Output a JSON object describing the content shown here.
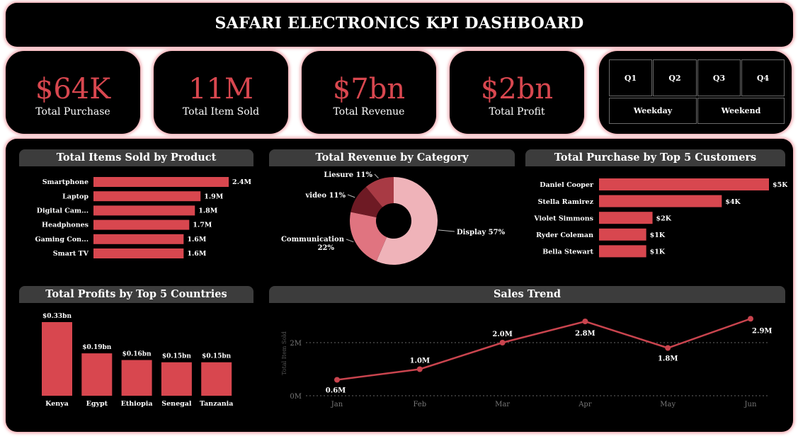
{
  "title": "SAFARI ELECTRONICS KPI DASHBOARD",
  "kpis": [
    {
      "value": "$64K",
      "label": "Total Purchase"
    },
    {
      "value": "11M",
      "label": "Total Item Sold"
    },
    {
      "value": "$7bn",
      "label": "Total Revenue"
    },
    {
      "value": "$2bn",
      "label": "Total Profit"
    }
  ],
  "slicer": {
    "quarters": [
      "Q1",
      "Q2",
      "Q3",
      "Q4"
    ],
    "day_types": [
      "Weekday",
      "Weekend"
    ]
  },
  "colors": {
    "accent": "#d8474f",
    "panel": "#000000",
    "header": "#3c3c3c"
  },
  "chart_data": [
    {
      "type": "bar",
      "orientation": "horizontal",
      "title": "Total Items Sold by Product",
      "categories": [
        "Smartphone",
        "Laptop",
        "Digital Cam...",
        "Headphones",
        "Gaming Con...",
        "Smart TV"
      ],
      "values": [
        2.4,
        1.9,
        1.8,
        1.7,
        1.6,
        1.6
      ],
      "value_labels": [
        "2.4M",
        "1.9M",
        "1.8M",
        "1.7M",
        "1.6M",
        "1.6M"
      ],
      "color": "#d8474f"
    },
    {
      "type": "pie",
      "donut": true,
      "title": "Total Revenue by Category",
      "slices": [
        {
          "name": "Display",
          "value": 57,
          "label": "Display 57%",
          "color": "#efb3b9"
        },
        {
          "name": "Communication",
          "value": 22,
          "label": "Communication 22%",
          "color": "#e07480"
        },
        {
          "name": "video",
          "value": 11,
          "label": "video 11%",
          "color": "#6e1a24"
        },
        {
          "name": "Liesure",
          "value": 11,
          "label": "Liesure 11%",
          "color": "#a83a44"
        }
      ]
    },
    {
      "type": "bar",
      "orientation": "horizontal",
      "title": "Total Purchase by Top 5 Customers",
      "categories": [
        "Daniel Cooper",
        "Stella Ramirez",
        "Violet Simmons",
        "Ryder Coleman",
        "Bella Stewart"
      ],
      "values": [
        5.4,
        3.9,
        1.7,
        1.5,
        1.5
      ],
      "value_labels": [
        "$5K",
        "$4K",
        "$2K",
        "$1K",
        "$1K"
      ],
      "color": "#d8474f"
    },
    {
      "type": "bar",
      "orientation": "vertical",
      "title": "Total Profits by Top 5 Countries",
      "categories": [
        "Kenya",
        "Egypt",
        "Ethiopia",
        "Senegal",
        "Tanzania"
      ],
      "values": [
        0.33,
        0.19,
        0.16,
        0.15,
        0.15
      ],
      "value_labels": [
        "$0.33bn",
        "$0.19bn",
        "$0.16bn",
        "$0.15bn",
        "$0.15bn"
      ],
      "color": "#d8474f"
    },
    {
      "type": "line",
      "title": "Sales Trend",
      "ylabel": "Total Item Sold",
      "x": [
        "Jan",
        "Feb",
        "Mar",
        "Apr",
        "May",
        "Jun"
      ],
      "values": [
        0.6,
        1.0,
        2.0,
        2.8,
        1.8,
        2.9
      ],
      "value_labels": [
        "0.6M",
        "1.0M",
        "2.0M",
        "2.8M",
        "1.8M",
        "2.9M"
      ],
      "ylim": [
        0,
        3.2
      ],
      "yticks": [
        {
          "value": 0,
          "label": "0M"
        },
        {
          "value": 2,
          "label": "2M"
        }
      ],
      "grid": true,
      "color": "#c9444e"
    }
  ]
}
